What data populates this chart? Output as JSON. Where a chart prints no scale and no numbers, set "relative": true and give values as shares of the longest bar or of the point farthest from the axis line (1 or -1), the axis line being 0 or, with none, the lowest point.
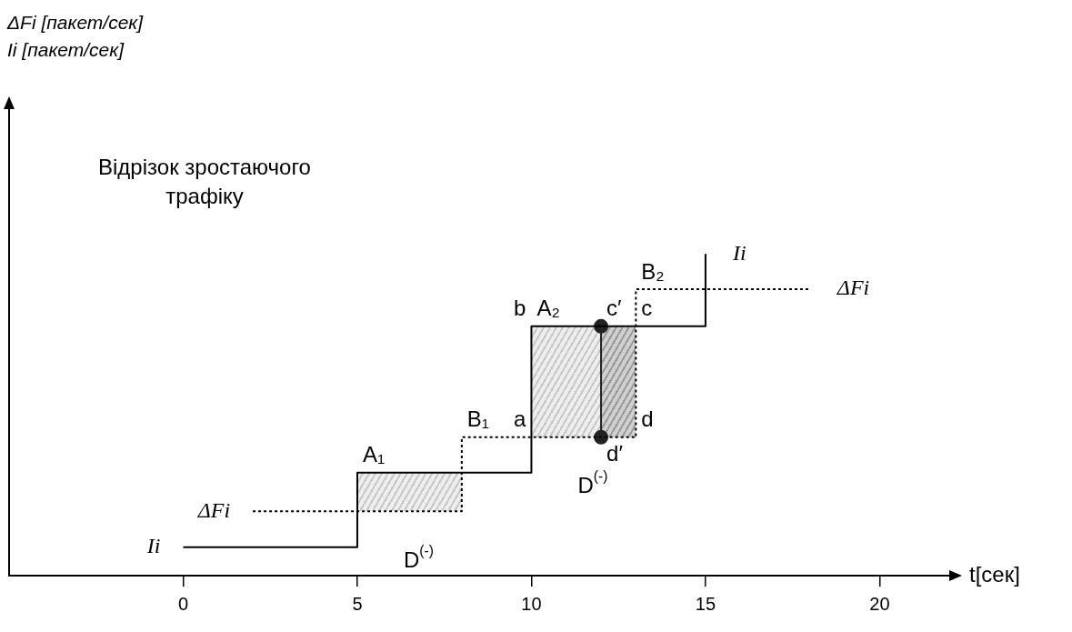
{
  "chart_data": {
    "type": "step",
    "relative": true,
    "xlabel": "t[сек]",
    "xlim": [
      -5,
      22
    ],
    "xticks": [
      0,
      5,
      10,
      15,
      20
    ],
    "legend": false,
    "grid": false,
    "series": [
      {
        "name": "Ii",
        "color": "#000000",
        "line_style": "solid",
        "x": [
          0,
          5,
          10,
          15
        ],
        "values": [
          0.088,
          0.32,
          0.775,
          1
        ]
      },
      {
        "name": "ΔFi",
        "color": "#000000",
        "line_style": "dotted",
        "x": [
          2,
          8,
          13,
          18
        ],
        "values": [
          0.2,
          0.43,
          0.89,
          0.89
        ]
      },
      {
        "type": "line",
        "color": "#222222",
        "marker": "circle",
        "x": [
          12,
          12
        ],
        "values": [
          0.775,
          0.43
        ]
      }
    ],
    "annotations": [
      "ΔFi [пакет/сек]\nIi [пакет/сек]",
      "Відрізок зростаючого трафіку",
      {
        "text": "A₁",
        "x": 5,
        "y": 0.32
      },
      {
        "text": "B₁",
        "x": 8,
        "y": 0.43
      },
      {
        "text": "A₂",
        "x": 10,
        "y": 0.775
      },
      {
        "text": "B₂",
        "x": 13,
        "y": 0.89
      },
      {
        "text": "a",
        "x": 10,
        "y": 0.43
      },
      {
        "text": "b",
        "x": 10,
        "y": 0.775
      },
      {
        "text": "c′",
        "x": 12,
        "y": 0.775
      },
      {
        "text": "c",
        "x": 13,
        "y": 0.775
      },
      {
        "text": "d′",
        "x": 12,
        "y": 0.43
      },
      {
        "text": "d",
        "x": 13,
        "y": 0.43
      },
      "D$^{(-)}$",
      "D$^{(-)}$"
    ]
  }
}
